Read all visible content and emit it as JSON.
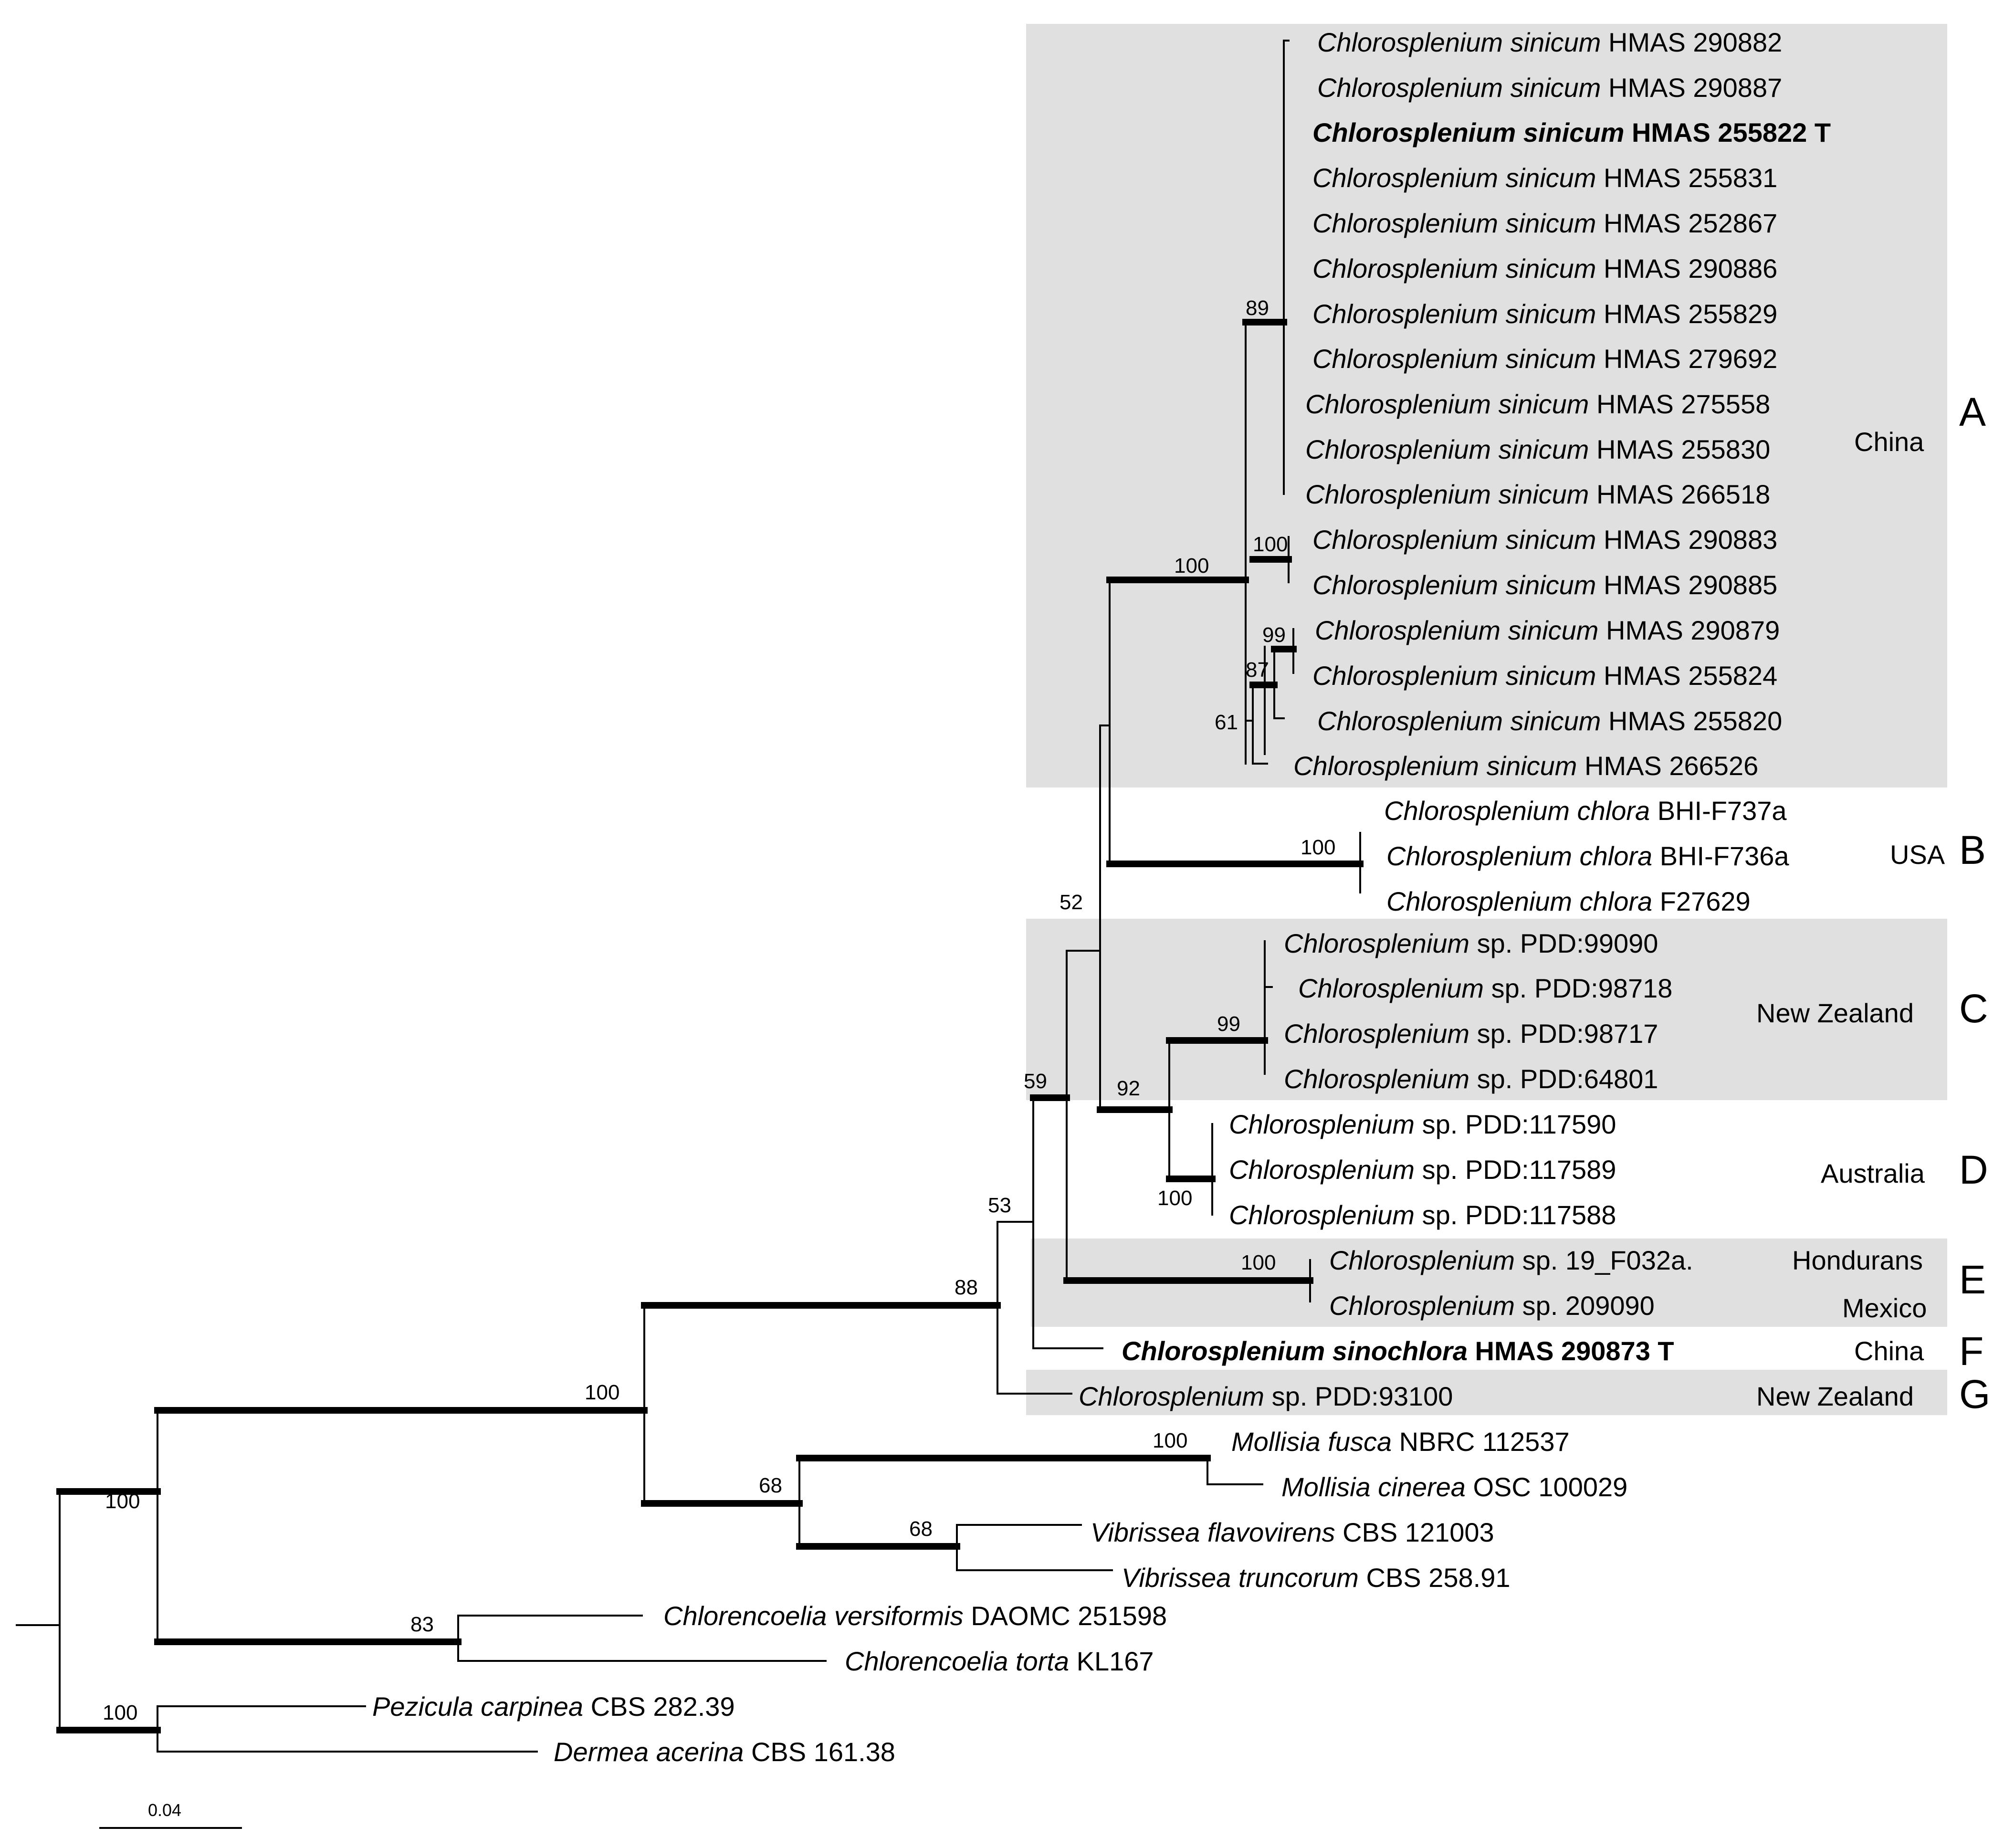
{
  "taxa": [
    {
      "genus_species": "Chlorosplenium sinicum",
      "voucher": "HMAS 290882",
      "type_specimen": false
    },
    {
      "genus_species": "Chlorosplenium sinicum",
      "voucher": "HMAS 290887",
      "type_specimen": false
    },
    {
      "genus_species": "Chlorosplenium sinicum",
      "voucher": "HMAS 255822 T",
      "type_specimen": true
    },
    {
      "genus_species": "Chlorosplenium sinicum",
      "voucher": "HMAS 255831",
      "type_specimen": false
    },
    {
      "genus_species": "Chlorosplenium sinicum",
      "voucher": "HMAS 252867",
      "type_specimen": false
    },
    {
      "genus_species": "Chlorosplenium sinicum",
      "voucher": "HMAS 290886",
      "type_specimen": false
    },
    {
      "genus_species": "Chlorosplenium sinicum",
      "voucher": "HMAS 255829",
      "type_specimen": false
    },
    {
      "genus_species": "Chlorosplenium sinicum",
      "voucher": "HMAS 279692",
      "type_specimen": false
    },
    {
      "genus_species": "Chlorosplenium sinicum",
      "voucher": "HMAS 275558",
      "type_specimen": false
    },
    {
      "genus_species": "Chlorosplenium sinicum",
      "voucher": "HMAS 255830",
      "type_specimen": false
    },
    {
      "genus_species": "Chlorosplenium sinicum",
      "voucher": "HMAS 266518",
      "type_specimen": false
    },
    {
      "genus_species": "Chlorosplenium sinicum",
      "voucher": "HMAS 290883",
      "type_specimen": false
    },
    {
      "genus_species": "Chlorosplenium sinicum",
      "voucher": "HMAS 290885",
      "type_specimen": false
    },
    {
      "genus_species": "Chlorosplenium sinicum",
      "voucher": "HMAS 290879",
      "type_specimen": false
    },
    {
      "genus_species": "Chlorosplenium sinicum",
      "voucher": "HMAS 255824",
      "type_specimen": false
    },
    {
      "genus_species": "Chlorosplenium sinicum",
      "voucher": "HMAS 255820",
      "type_specimen": false
    },
    {
      "genus_species": "Chlorosplenium sinicum",
      "voucher": "HMAS 266526",
      "type_specimen": false
    },
    {
      "genus_species": "Chlorosplenium chlora",
      "voucher": "BHI-F737a",
      "type_specimen": false
    },
    {
      "genus_species": "Chlorosplenium chlora",
      "voucher": "BHI-F736a",
      "type_specimen": false
    },
    {
      "genus_species": "Chlorosplenium chlora",
      "voucher": "F27629",
      "type_specimen": false
    },
    {
      "genus_species": "Chlorosplenium",
      "voucher": "sp. PDD:99090",
      "type_specimen": false
    },
    {
      "genus_species": "Chlorosplenium",
      "voucher": "sp. PDD:98718",
      "type_specimen": false
    },
    {
      "genus_species": "Chlorosplenium",
      "voucher": "sp. PDD:98717",
      "type_specimen": false
    },
    {
      "genus_species": "Chlorosplenium",
      "voucher": "sp. PDD:64801",
      "type_specimen": false
    },
    {
      "genus_species": "Chlorosplenium",
      "voucher": "sp. PDD:117590",
      "type_specimen": false
    },
    {
      "genus_species": "Chlorosplenium",
      "voucher": "sp. PDD:117589",
      "type_specimen": false
    },
    {
      "genus_species": "Chlorosplenium",
      "voucher": "sp. PDD:117588",
      "type_specimen": false
    },
    {
      "genus_species": "Chlorosplenium",
      "voucher": "sp. 19_F032a.",
      "type_specimen": false
    },
    {
      "genus_species": "Chlorosplenium",
      "voucher": "sp. 209090",
      "type_specimen": false
    },
    {
      "genus_species": "Chlorosplenium sinochlora",
      "voucher": "HMAS 290873 T",
      "type_specimen": true
    },
    {
      "genus_species": "Chlorosplenium",
      "voucher": "sp. PDD:93100",
      "type_specimen": false
    },
    {
      "genus_species": "Mollisia fusca",
      "voucher": "NBRC 112537",
      "type_specimen": false
    },
    {
      "genus_species": "Mollisia cinerea",
      "voucher": "OSC 100029",
      "type_specimen": false
    },
    {
      "genus_species": "Vibrissea flavovirens",
      "voucher": "CBS 121003",
      "type_specimen": false
    },
    {
      "genus_species": "Vibrissea truncorum",
      "voucher": "CBS 258.91",
      "type_specimen": false
    },
    {
      "genus_species": "Chlorencoelia versiformis",
      "voucher": "DAOMC 251598",
      "type_specimen": false
    },
    {
      "genus_species": "Chlorencoelia torta",
      "voucher": "KL167",
      "type_specimen": false
    },
    {
      "genus_species": "Pezicula carpinea",
      "voucher": "CBS 282.39",
      "type_specimen": false
    },
    {
      "genus_species": "Dermea acerina",
      "voucher": "CBS 161.38",
      "type_specimen": false
    }
  ],
  "bootstrap_values": [
    "100",
    "89",
    "100",
    "99",
    "87",
    "61",
    "100",
    "99",
    "92",
    "100",
    "52",
    "100",
    "59",
    "53",
    "88",
    "100",
    "100",
    "68",
    "68",
    "83",
    "100"
  ],
  "groups": [
    {
      "letter": "A",
      "region": "China"
    },
    {
      "letter": "B",
      "region": "USA"
    },
    {
      "letter": "C",
      "region": "New Zealand"
    },
    {
      "letter": "D",
      "region": "Australia"
    },
    {
      "letter": "E",
      "region": "Hondurans",
      "region2": "Mexico"
    },
    {
      "letter": "F",
      "region": "China"
    },
    {
      "letter": "G",
      "region": "New Zealand"
    }
  ],
  "scale_bar": {
    "label": "0.04",
    "value": 0.04
  }
}
